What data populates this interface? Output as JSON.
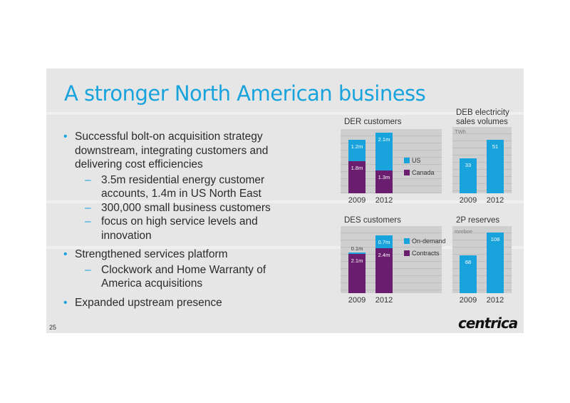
{
  "title": "A stronger North American business",
  "page_number": "25",
  "logo_text": "centrica",
  "colors": {
    "accent": "#18a3dc",
    "purple": "#6b1d6f",
    "text": "#2b2b2b"
  },
  "bullets": [
    {
      "text": "Successful bolt-on acquisition strategy downstream, integrating customers and delivering cost efficiencies",
      "sub": [
        "3.5m residential energy customer accounts, 1.4m in US North East",
        "300,000 small business customers",
        "focus on high service levels and innovation"
      ]
    },
    {
      "text": "Strengthened services platform",
      "sub": [
        "Clockwork and Home Warranty of America acquisitions"
      ]
    },
    {
      "text": "Expanded upstream presence",
      "sub": []
    }
  ],
  "chart_data": [
    {
      "type": "bar",
      "title": "DER customers",
      "stacked": true,
      "categories": [
        "2009",
        "2012"
      ],
      "series": [
        {
          "name": "Canada",
          "color": "#6b1d6f",
          "values": [
            1.8,
            1.3
          ],
          "labels": [
            "1.8m",
            "1.3m"
          ]
        },
        {
          "name": "US",
          "color": "#18a3dc",
          "values": [
            1.2,
            2.1
          ],
          "labels": [
            "1.2m",
            "2.1m"
          ]
        }
      ],
      "legend": [
        "US",
        "Canada"
      ],
      "ylim": [
        0,
        3.6
      ]
    },
    {
      "type": "bar",
      "title": "DEB electricity sales volumes",
      "unit": "TWh",
      "categories": [
        "2009",
        "2012"
      ],
      "series": [
        {
          "name": "",
          "color": "#18a3dc",
          "values": [
            33,
            51
          ],
          "labels": [
            "33",
            "51"
          ]
        }
      ],
      "ylim": [
        0,
        63
      ]
    },
    {
      "type": "bar",
      "title": "DES customers",
      "stacked": true,
      "categories": [
        "2009",
        "2012"
      ],
      "series": [
        {
          "name": "Contracts",
          "color": "#6b1d6f",
          "values": [
            2.1,
            2.4
          ],
          "labels": [
            "2.1m",
            "2.4m"
          ]
        },
        {
          "name": "On-demand",
          "color": "#18a3dc",
          "values": [
            0.1,
            0.7
          ],
          "labels": [
            "0.1m",
            "0.7m"
          ]
        }
      ],
      "legend": [
        "On-demand",
        "Contracts"
      ],
      "ylim": [
        0,
        3.6
      ]
    },
    {
      "type": "bar",
      "title": "2P reserves",
      "unit": "mmboe",
      "categories": [
        "2009",
        "2012"
      ],
      "series": [
        {
          "name": "",
          "color": "#18a3dc",
          "values": [
            68,
            108
          ],
          "labels": [
            "68",
            "108"
          ]
        }
      ],
      "ylim": [
        0,
        120
      ]
    }
  ]
}
